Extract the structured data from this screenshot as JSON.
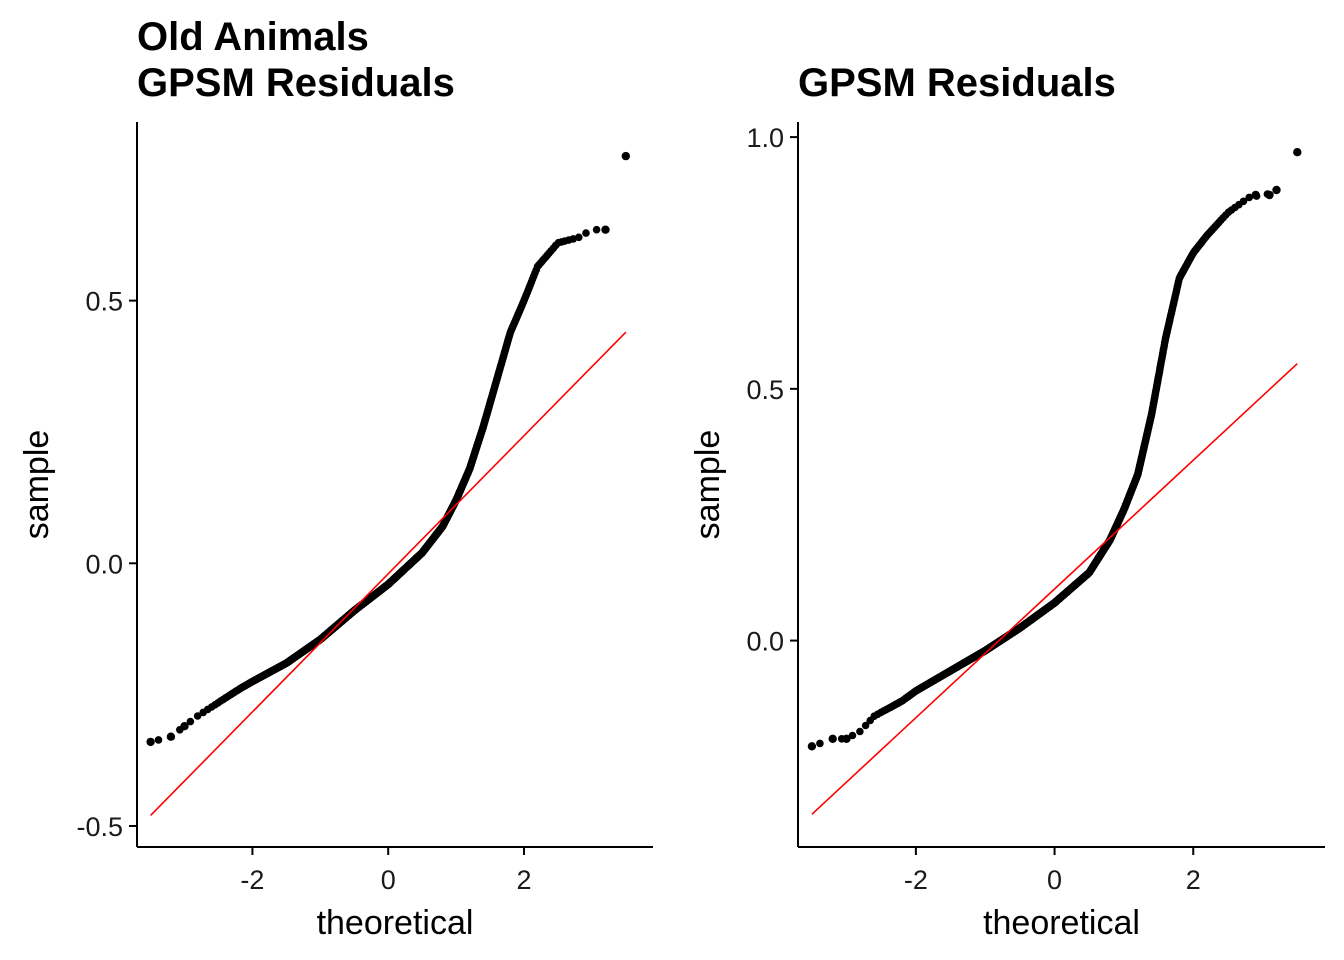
{
  "chart_data": [
    {
      "type": "scatter",
      "subtype": "qq-plot",
      "title": [
        "Old Animals",
        "GPSM Residuals"
      ],
      "xlabel": "theoretical",
      "ylabel": "sample",
      "xlim": [
        -3.7,
        3.9
      ],
      "ylim": [
        -0.54,
        0.84
      ],
      "x_ticks": [
        -2,
        0,
        2
      ],
      "x_tick_labels": [
        "-2",
        "0",
        "2"
      ],
      "y_ticks": [
        -0.5,
        0.0,
        0.5
      ],
      "y_tick_labels": [
        "-0.5",
        "0.0",
        "0.5"
      ],
      "point_color": "#000000",
      "line_color": "#ff0000",
      "reference_line": {
        "x": [
          -3.5,
          3.5
        ],
        "y": [
          -0.48,
          0.44
        ]
      },
      "quantile_curve": [
        [
          -3.5,
          -0.34
        ],
        [
          -3.2,
          -0.33
        ],
        [
          -3.0,
          -0.31
        ],
        [
          -2.8,
          -0.29
        ],
        [
          -2.5,
          -0.265
        ],
        [
          -2.2,
          -0.24
        ],
        [
          -2.0,
          -0.225
        ],
        [
          -1.5,
          -0.19
        ],
        [
          -1.0,
          -0.145
        ],
        [
          -0.5,
          -0.09
        ],
        [
          0.0,
          -0.04
        ],
        [
          0.5,
          0.02
        ],
        [
          0.8,
          0.07
        ],
        [
          1.0,
          0.12
        ],
        [
          1.2,
          0.18
        ],
        [
          1.4,
          0.26
        ],
        [
          1.6,
          0.35
        ],
        [
          1.8,
          0.44
        ],
        [
          2.0,
          0.5
        ],
        [
          2.2,
          0.565
        ],
        [
          2.5,
          0.61
        ],
        [
          2.8,
          0.62
        ],
        [
          3.0,
          0.635
        ],
        [
          3.2,
          0.635
        ]
      ],
      "extreme_points": [
        {
          "x": -3.5,
          "y": -0.34
        },
        {
          "x": -3.2,
          "y": -0.33
        },
        {
          "x": -3.0,
          "y": -0.31
        },
        {
          "x": 3.2,
          "y": 0.635
        },
        {
          "x": 3.5,
          "y": 0.775
        }
      ]
    },
    {
      "type": "scatter",
      "subtype": "qq-plot",
      "title": [
        "GPSM Residuals"
      ],
      "xlabel": "theoretical",
      "ylabel": "sample",
      "xlim": [
        -3.7,
        3.9
      ],
      "ylim": [
        -0.41,
        1.03
      ],
      "x_ticks": [
        -2,
        0,
        2
      ],
      "x_tick_labels": [
        "-2",
        "0",
        "2"
      ],
      "y_ticks": [
        0.0,
        0.5,
        1.0
      ],
      "y_tick_labels": [
        "0.0",
        "0.5",
        "1.0"
      ],
      "point_color": "#000000",
      "line_color": "#ff0000",
      "reference_line": {
        "x": [
          -3.5,
          3.5
        ],
        "y": [
          -0.345,
          0.55
        ]
      },
      "quantile_curve": [
        [
          -3.5,
          -0.21
        ],
        [
          -3.2,
          -0.195
        ],
        [
          -3.0,
          -0.195
        ],
        [
          -2.8,
          -0.18
        ],
        [
          -2.6,
          -0.15
        ],
        [
          -2.2,
          -0.12
        ],
        [
          -2.0,
          -0.1
        ],
        [
          -1.5,
          -0.06
        ],
        [
          -1.0,
          -0.02
        ],
        [
          -0.5,
          0.025
        ],
        [
          0.0,
          0.075
        ],
        [
          0.5,
          0.135
        ],
        [
          0.8,
          0.2
        ],
        [
          1.0,
          0.26
        ],
        [
          1.2,
          0.33
        ],
        [
          1.4,
          0.45
        ],
        [
          1.6,
          0.6
        ],
        [
          1.8,
          0.72
        ],
        [
          2.0,
          0.77
        ],
        [
          2.2,
          0.805
        ],
        [
          2.5,
          0.85
        ],
        [
          2.8,
          0.88
        ],
        [
          3.0,
          0.885
        ],
        [
          3.2,
          0.89
        ]
      ],
      "extreme_points": [
        {
          "x": -3.5,
          "y": -0.21
        },
        {
          "x": -3.2,
          "y": -0.195
        },
        {
          "x": -3.0,
          "y": -0.195
        },
        {
          "x": 2.9,
          "y": 0.885
        },
        {
          "x": 3.1,
          "y": 0.885
        },
        {
          "x": 3.2,
          "y": 0.895
        },
        {
          "x": 3.5,
          "y": 0.97
        }
      ]
    }
  ]
}
